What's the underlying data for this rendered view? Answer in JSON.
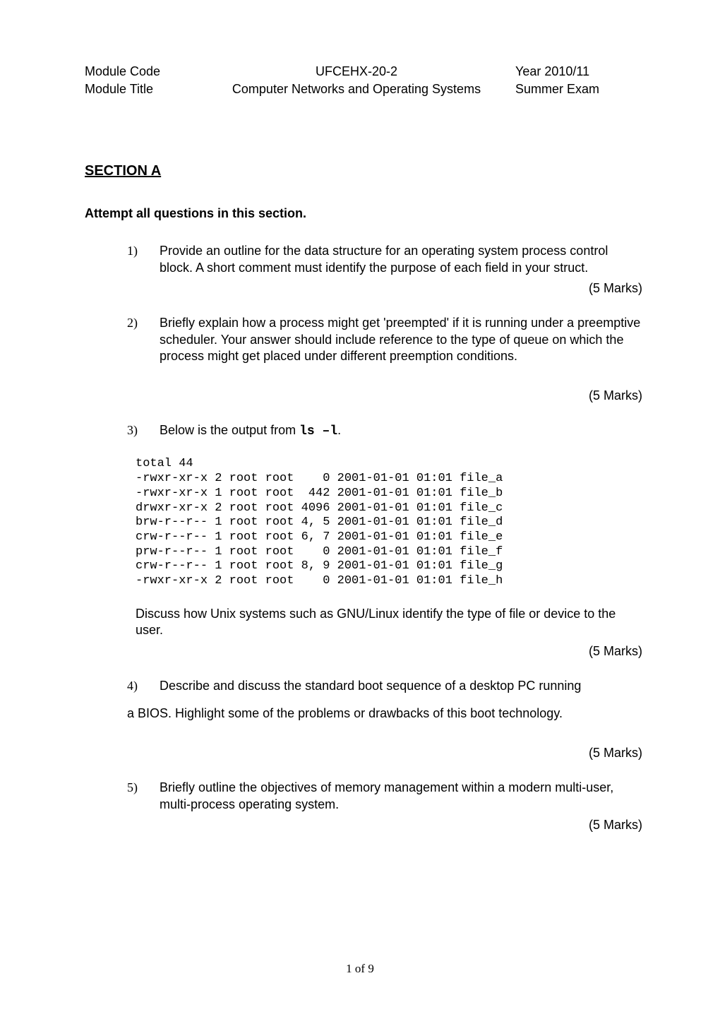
{
  "header": {
    "row1": {
      "left": "Module Code",
      "center": "UFCEHX-20-2",
      "right": "Year 2010/11"
    },
    "row2": {
      "left": "Module Title",
      "center": "Computer Networks and Operating Systems",
      "right": "Summer  Exam"
    }
  },
  "section_title": "SECTION A",
  "attempt": "Attempt all questions in this section.",
  "marks_5": "(5 Marks)",
  "q1": {
    "num": "1)",
    "text": "Provide an outline for the data structure for an operating system process control block. A short comment must identify the purpose of each field in your struct."
  },
  "q2": {
    "num": "2)",
    "text": "Briefly explain how a process might get 'preempted' if it is running under a preemptive scheduler. Your answer should include reference to the type of queue on which the process might get placed under different preemption conditions."
  },
  "q3": {
    "num": "3)",
    "prefix": "Below  is the output from ",
    "cmd": "ls –l",
    "suffix": "."
  },
  "code": "total 44\n-rwxr-xr-x 2 root root    0 2001-01-01 01:01 file_a\n-rwxr-xr-x 1 root root  442 2001-01-01 01:01 file_b\ndrwxr-xr-x 2 root root 4096 2001-01-01 01:01 file_c\nbrw-r--r-- 1 root root 4, 5 2001-01-01 01:01 file_d\ncrw-r--r-- 1 root root 6, 7 2001-01-01 01:01 file_e\nprw-r--r-- 1 root root    0 2001-01-01 01:01 file_f\ncrw-r--r-- 1 root root 8, 9 2001-01-01 01:01 file_g\n-rwxr-xr-x 2 root root    0 2001-01-01 01:01 file_h",
  "q3_follow": "Discuss how Unix systems such as GNU/Linux identify the type of file or device to the user.",
  "q4": {
    "num": "4)",
    "line1": "Describe and discuss  the standard boot sequence of a desktop PC running",
    "line2": "a BIOS.  Highlight some of the problems or drawbacks of this boot technology."
  },
  "q5": {
    "num": "5)",
    "text": "Briefly outline the objectives of memory management within a modern multi-user, multi-process operating system."
  },
  "footer": "1 of 9"
}
